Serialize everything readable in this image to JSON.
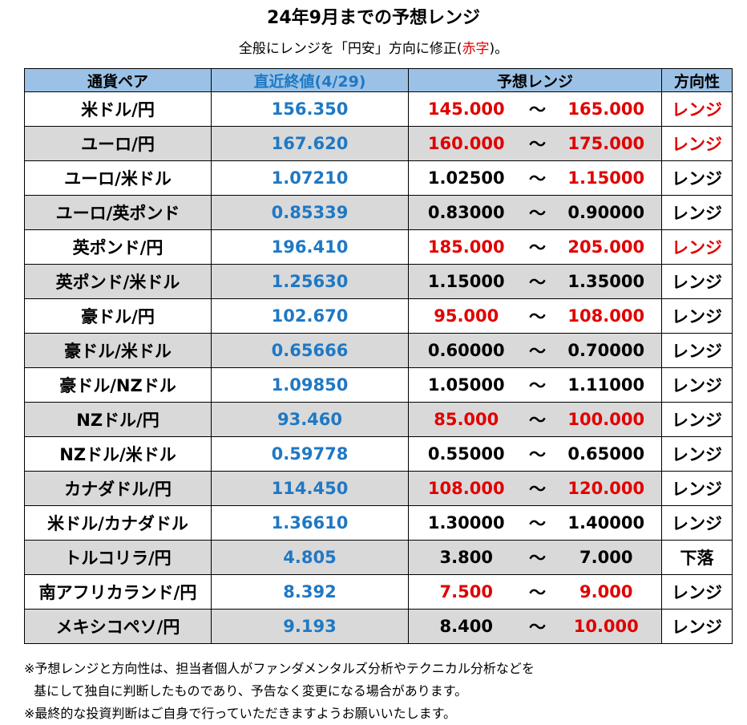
{
  "title": "24年9月までの予想レンジ",
  "subtitle": {
    "before": "全般にレンジを「円安」方向に修正(",
    "red": "赤字",
    "after": ")。"
  },
  "colors": {
    "header_bg": "#9bc2e6",
    "blue_text": "#1f78c4",
    "red_text": "#e00000",
    "shade": "#d9d9d9"
  },
  "headers": {
    "pair": "通貨ペア",
    "close": "直近終値(4/29)",
    "range": "予想レンジ",
    "direction": "方向性"
  },
  "rows": [
    {
      "pair": "米ドル/円",
      "close": "156.350",
      "low": "145.000",
      "low_color": "red",
      "tilde": "〜",
      "high": "165.000",
      "high_color": "red",
      "direction": "レンジ",
      "dir_color": "red",
      "shaded": false
    },
    {
      "pair": "ユーロ/円",
      "close": "167.620",
      "low": "160.000",
      "low_color": "red",
      "tilde": "〜",
      "high": "175.000",
      "high_color": "red",
      "direction": "レンジ",
      "dir_color": "red",
      "shaded": true
    },
    {
      "pair": "ユーロ/米ドル",
      "close": "1.07210",
      "low": "1.02500",
      "low_color": "black",
      "tilde": "〜",
      "high": "1.15000",
      "high_color": "red",
      "direction": "レンジ",
      "dir_color": "black",
      "shaded": false
    },
    {
      "pair": "ユーロ/英ポンド",
      "close": "0.85339",
      "low": "0.83000",
      "low_color": "black",
      "tilde": "〜",
      "high": "0.90000",
      "high_color": "black",
      "direction": "レンジ",
      "dir_color": "black",
      "shaded": true
    },
    {
      "pair": "英ポンド/円",
      "close": "196.410",
      "low": "185.000",
      "low_color": "red",
      "tilde": "〜",
      "high": "205.000",
      "high_color": "red",
      "direction": "レンジ",
      "dir_color": "red",
      "shaded": false
    },
    {
      "pair": "英ポンド/米ドル",
      "close": "1.25630",
      "low": "1.15000",
      "low_color": "black",
      "tilde": "〜",
      "high": "1.35000",
      "high_color": "black",
      "direction": "レンジ",
      "dir_color": "black",
      "shaded": true
    },
    {
      "pair": "豪ドル/円",
      "close": "102.670",
      "low": "95.000",
      "low_color": "red",
      "tilde": "〜",
      "high": "108.000",
      "high_color": "red",
      "direction": "レンジ",
      "dir_color": "black",
      "shaded": false
    },
    {
      "pair": "豪ドル/米ドル",
      "close": "0.65666",
      "low": "0.60000",
      "low_color": "black",
      "tilde": "〜",
      "high": "0.70000",
      "high_color": "black",
      "direction": "レンジ",
      "dir_color": "black",
      "shaded": true
    },
    {
      "pair": "豪ドル/NZドル",
      "close": "1.09850",
      "low": "1.05000",
      "low_color": "black",
      "tilde": "〜",
      "high": "1.11000",
      "high_color": "black",
      "direction": "レンジ",
      "dir_color": "black",
      "shaded": false
    },
    {
      "pair": "NZドル/円",
      "close": "93.460",
      "low": "85.000",
      "low_color": "red",
      "tilde": "〜",
      "high": "100.000",
      "high_color": "red",
      "direction": "レンジ",
      "dir_color": "black",
      "shaded": true
    },
    {
      "pair": "NZドル/米ドル",
      "close": "0.59778",
      "low": "0.55000",
      "low_color": "black",
      "tilde": "〜",
      "high": "0.65000",
      "high_color": "black",
      "direction": "レンジ",
      "dir_color": "black",
      "shaded": false
    },
    {
      "pair": "カナダドル/円",
      "close": "114.450",
      "low": "108.000",
      "low_color": "red",
      "tilde": "〜",
      "high": "120.000",
      "high_color": "red",
      "direction": "レンジ",
      "dir_color": "black",
      "shaded": true
    },
    {
      "pair": "米ドル/カナダドル",
      "close": "1.36610",
      "low": "1.30000",
      "low_color": "black",
      "tilde": "〜",
      "high": "1.40000",
      "high_color": "black",
      "direction": "レンジ",
      "dir_color": "black",
      "shaded": false
    },
    {
      "pair": "トルコリラ/円",
      "close": "4.805",
      "low": "3.800",
      "low_color": "black",
      "tilde": "〜",
      "high": "7.000",
      "high_color": "black",
      "direction": "下落",
      "dir_color": "black",
      "shaded": true
    },
    {
      "pair": "南アフリカランド/円",
      "close": "8.392",
      "low": "7.500",
      "low_color": "red",
      "tilde": "〜",
      "high": "9.000",
      "high_color": "red",
      "direction": "レンジ",
      "dir_color": "black",
      "shaded": false
    },
    {
      "pair": "メキシコペソ/円",
      "close": "9.193",
      "low": "8.400",
      "low_color": "black",
      "tilde": "〜",
      "high": "10.000",
      "high_color": "red",
      "direction": "レンジ",
      "dir_color": "black",
      "shaded": true
    }
  ],
  "notes": {
    "line1": "※予想レンジと方向性は、担当者個人がファンダメンタルズ分析やテクニカル分析などを",
    "line2": "基にして独自に判断したものであり、予告なく変更になる場合があります。",
    "line3": "※最終的な投資判断はご自身で行っていただきますようお願いいたします。"
  }
}
